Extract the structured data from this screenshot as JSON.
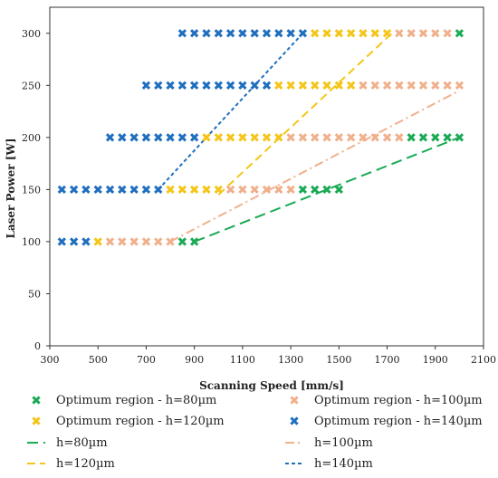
{
  "chart_data": {
    "type": "scatter",
    "title": "",
    "xlabel": "Scanning Speed [mm/s]",
    "ylabel": "Laser Power [W]",
    "xlim": [
      300,
      2100
    ],
    "ylim": [
      0,
      325
    ],
    "xticks": [
      300,
      500,
      700,
      900,
      1100,
      1300,
      1500,
      1700,
      1900,
      2100
    ],
    "yticks": [
      0,
      50,
      100,
      150,
      200,
      250,
      300
    ],
    "grid": false,
    "legend_position": "bottom",
    "series": [
      {
        "name": "Optimum region - h=140µm",
        "color": "#1f6fbf",
        "marker": "x",
        "points": [
          [
            350,
            100
          ],
          [
            400,
            100
          ],
          [
            450,
            100
          ],
          [
            350,
            150
          ],
          [
            400,
            150
          ],
          [
            450,
            150
          ],
          [
            500,
            150
          ],
          [
            550,
            150
          ],
          [
            600,
            150
          ],
          [
            650,
            150
          ],
          [
            700,
            150
          ],
          [
            750,
            150
          ],
          [
            550,
            200
          ],
          [
            600,
            200
          ],
          [
            650,
            200
          ],
          [
            700,
            200
          ],
          [
            750,
            200
          ],
          [
            800,
            200
          ],
          [
            850,
            200
          ],
          [
            900,
            200
          ],
          [
            700,
            250
          ],
          [
            750,
            250
          ],
          [
            800,
            250
          ],
          [
            850,
            250
          ],
          [
            900,
            250
          ],
          [
            950,
            250
          ],
          [
            1000,
            250
          ],
          [
            1050,
            250
          ],
          [
            1100,
            250
          ],
          [
            1150,
            250
          ],
          [
            1200,
            250
          ],
          [
            850,
            300
          ],
          [
            900,
            300
          ],
          [
            950,
            300
          ],
          [
            1000,
            300
          ],
          [
            1050,
            300
          ],
          [
            1100,
            300
          ],
          [
            1150,
            300
          ],
          [
            1200,
            300
          ],
          [
            1250,
            300
          ],
          [
            1300,
            300
          ],
          [
            1350,
            300
          ]
        ]
      },
      {
        "name": "Optimum region - h=120µm",
        "color": "#f5c518",
        "marker": "x",
        "points": [
          [
            500,
            100
          ],
          [
            800,
            150
          ],
          [
            850,
            150
          ],
          [
            900,
            150
          ],
          [
            950,
            150
          ],
          [
            1000,
            150
          ],
          [
            950,
            200
          ],
          [
            1000,
            200
          ],
          [
            1050,
            200
          ],
          [
            1100,
            200
          ],
          [
            1150,
            200
          ],
          [
            1200,
            200
          ],
          [
            1250,
            200
          ],
          [
            1250,
            250
          ],
          [
            1300,
            250
          ],
          [
            1350,
            250
          ],
          [
            1400,
            250
          ],
          [
            1450,
            250
          ],
          [
            1500,
            250
          ],
          [
            1550,
            250
          ],
          [
            1400,
            300
          ],
          [
            1450,
            300
          ],
          [
            1500,
            300
          ],
          [
            1550,
            300
          ],
          [
            1600,
            300
          ],
          [
            1650,
            300
          ],
          [
            1700,
            300
          ]
        ]
      },
      {
        "name": "Optimum region - h=100µm",
        "color": "#f0b08c",
        "marker": "x",
        "points": [
          [
            550,
            100
          ],
          [
            600,
            100
          ],
          [
            650,
            100
          ],
          [
            700,
            100
          ],
          [
            750,
            100
          ],
          [
            800,
            100
          ],
          [
            1050,
            150
          ],
          [
            1100,
            150
          ],
          [
            1150,
            150
          ],
          [
            1200,
            150
          ],
          [
            1250,
            150
          ],
          [
            1300,
            150
          ],
          [
            1300,
            200
          ],
          [
            1350,
            200
          ],
          [
            1400,
            200
          ],
          [
            1450,
            200
          ],
          [
            1500,
            200
          ],
          [
            1550,
            200
          ],
          [
            1600,
            200
          ],
          [
            1650,
            200
          ],
          [
            1700,
            200
          ],
          [
            1750,
            200
          ],
          [
            1600,
            250
          ],
          [
            1650,
            250
          ],
          [
            1700,
            250
          ],
          [
            1750,
            250
          ],
          [
            1800,
            250
          ],
          [
            1850,
            250
          ],
          [
            1900,
            250
          ],
          [
            1950,
            250
          ],
          [
            2000,
            250
          ],
          [
            1750,
            300
          ],
          [
            1800,
            300
          ],
          [
            1850,
            300
          ],
          [
            1900,
            300
          ],
          [
            1950,
            300
          ]
        ]
      },
      {
        "name": "Optimum region - h=80µm",
        "color": "#1aaa55",
        "marker": "x",
        "points": [
          [
            850,
            100
          ],
          [
            900,
            100
          ],
          [
            1350,
            150
          ],
          [
            1400,
            150
          ],
          [
            1450,
            150
          ],
          [
            1500,
            150
          ],
          [
            1800,
            200
          ],
          [
            1850,
            200
          ],
          [
            1900,
            200
          ],
          [
            1950,
            200
          ],
          [
            2000,
            200
          ],
          [
            2000,
            300
          ]
        ]
      }
    ],
    "lines": [
      {
        "name": "h=80µm",
        "color": "#1aaa55",
        "dash": "12,6",
        "points": [
          [
            900,
            100
          ],
          [
            2000,
            200
          ]
        ]
      },
      {
        "name": "h=100µm",
        "color": "#f0b08c",
        "dash": "10,4,2,4",
        "points": [
          [
            800,
            100
          ],
          [
            2000,
            245
          ]
        ]
      },
      {
        "name": "h=120µm",
        "color": "#f5c518",
        "dash": "9,5",
        "points": [
          [
            1000,
            145
          ],
          [
            1720,
            300
          ]
        ]
      },
      {
        "name": "h=140µm",
        "color": "#1f6fbf",
        "dash": "4,3",
        "points": [
          [
            750,
            150
          ],
          [
            1350,
            300
          ]
        ]
      }
    ],
    "legend": [
      {
        "label": "Optimum region - h=80µm",
        "type": "marker",
        "color": "#1aaa55"
      },
      {
        "label": "Optimum region - h=100µm",
        "type": "marker",
        "color": "#f0b08c"
      },
      {
        "label": "Optimum region - h=120µm",
        "type": "marker",
        "color": "#f5c518"
      },
      {
        "label": "Optimum region - h=140µm",
        "type": "marker",
        "color": "#1f6fbf"
      },
      {
        "label": "h=80µm",
        "type": "line",
        "color": "#1aaa55",
        "dash": "12,6"
      },
      {
        "label": "h=100µm",
        "type": "line",
        "color": "#f0b08c",
        "dash": "10,4,2,4"
      },
      {
        "label": "h=120µm",
        "type": "line",
        "color": "#f5c518",
        "dash": "9,5"
      },
      {
        "label": "h=140µm",
        "type": "line",
        "color": "#1f6fbf",
        "dash": "4,3"
      }
    ]
  }
}
